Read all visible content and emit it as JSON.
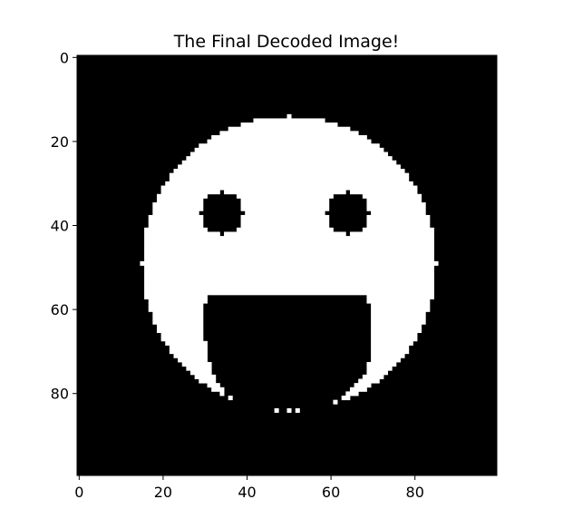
{
  "chart_data": {
    "type": "heatmap",
    "title": "The Final Decoded Image!",
    "xlabel": "",
    "ylabel": "",
    "colormap": "gray",
    "background_color": "#000000",
    "foreground_color": "#ffffff",
    "grid": false,
    "image_size": [
      100,
      100
    ],
    "xlim": [
      -0.5,
      99.5
    ],
    "ylim": [
      99.5,
      -0.5
    ],
    "xticks": [
      0,
      20,
      40,
      60,
      80
    ],
    "yticks": [
      0,
      20,
      40,
      60,
      80
    ],
    "xtick_labels": [
      "0",
      "20",
      "40",
      "60",
      "80"
    ],
    "ytick_labels": [
      "0",
      "20",
      "40",
      "60",
      "80"
    ],
    "face": {
      "center": [
        50,
        49
      ],
      "radius": 35
    },
    "eyes": [
      {
        "center": [
          34,
          37
        ],
        "radius": 5
      },
      {
        "center": [
          64,
          37
        ],
        "radius": 5
      }
    ],
    "mouth": {
      "top_row": 57,
      "spans": [
        [
          57,
          31,
          68
        ],
        [
          60,
          30,
          69
        ],
        [
          65,
          30,
          69
        ],
        [
          70,
          31,
          69
        ],
        [
          75,
          32,
          68
        ],
        [
          78,
          34,
          65
        ],
        [
          80,
          35,
          63
        ],
        [
          82,
          38,
          60
        ],
        [
          84,
          41,
          57
        ],
        [
          86,
          45,
          55
        ]
      ]
    },
    "isolated_pixels": [
      [
        47,
        84
      ],
      [
        50,
        84
      ],
      [
        52,
        84
      ]
    ]
  }
}
